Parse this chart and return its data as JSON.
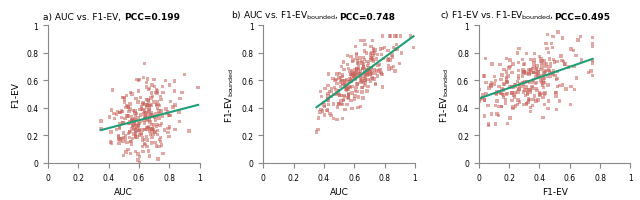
{
  "dot_color": "#c8635a",
  "dot_alpha": 0.55,
  "dot_size": 6,
  "dot_marker": "s",
  "line_color": "#1f9e76",
  "line_width": 1.5,
  "xlim": [
    0,
    1
  ],
  "ylim": [
    0,
    1
  ],
  "xticks": [
    0,
    0.2,
    0.4,
    0.6,
    0.8,
    1
  ],
  "yticks": [
    0,
    0.2,
    0.4,
    0.6,
    0.8,
    1
  ],
  "tick_fontsize": 5.5,
  "label_fontsize": 6.5,
  "title_fontsize": 6.5,
  "n_points": 280,
  "pcc_a": 0.199,
  "pcc_b": 0.748,
  "pcc_c": 0.495,
  "fig_width": 6.4,
  "fig_height": 2.01
}
